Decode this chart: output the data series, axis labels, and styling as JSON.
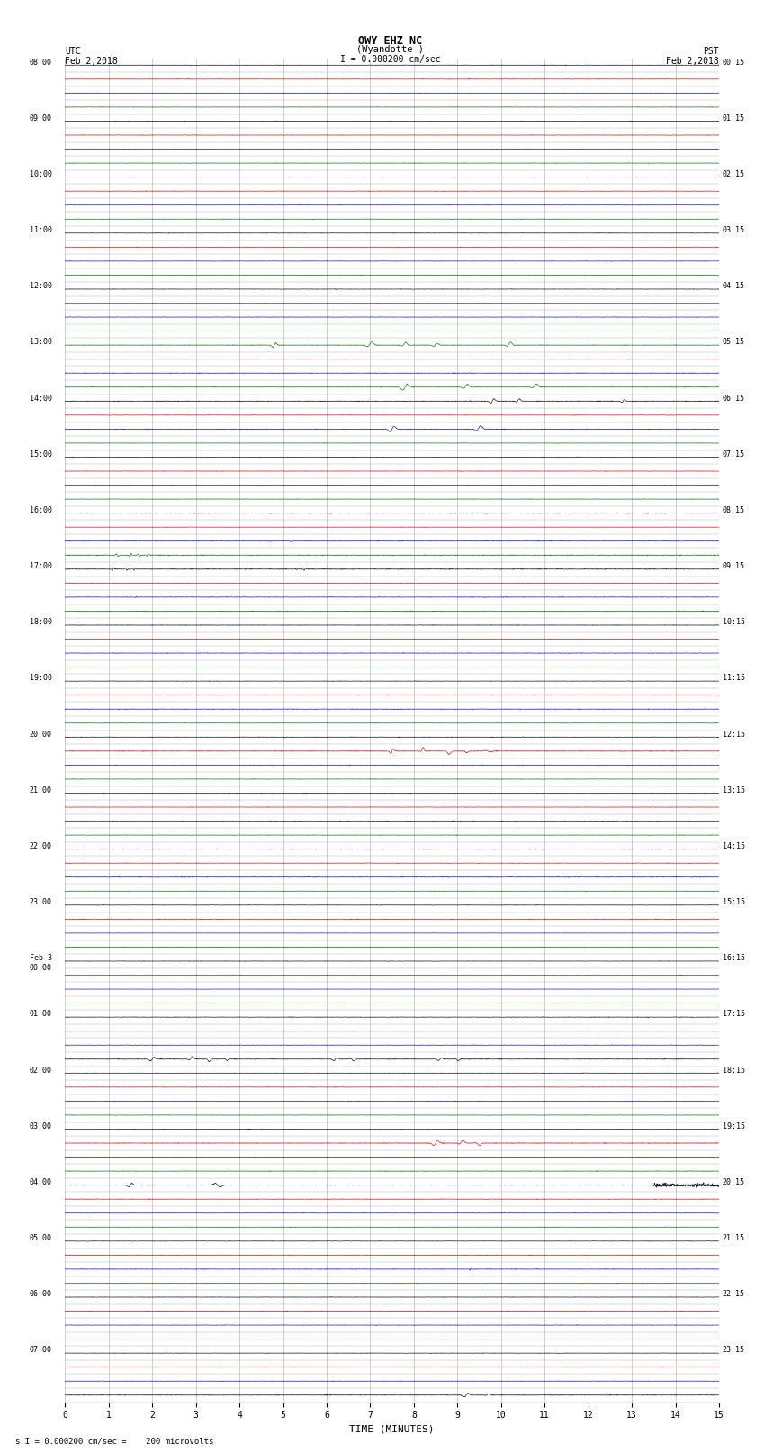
{
  "title_line1": "OWY EHZ NC",
  "title_line2": "(Wyandotte )",
  "scale_label": "I = 0.000200 cm/sec",
  "left_header": "UTC\nFeb 2,2018",
  "right_header": "PST\nFeb 2,2018",
  "bottom_note": "s I = 0.000200 cm/sec =    200 microvolts",
  "xlabel": "TIME (MINUTES)",
  "utc_times": [
    "08:00",
    "",
    "",
    "",
    "09:00",
    "",
    "",
    "",
    "10:00",
    "",
    "",
    "",
    "11:00",
    "",
    "",
    "",
    "12:00",
    "",
    "",
    "",
    "13:00",
    "",
    "",
    "",
    "14:00",
    "",
    "",
    "",
    "15:00",
    "",
    "",
    "",
    "16:00",
    "",
    "",
    "",
    "17:00",
    "",
    "",
    "",
    "18:00",
    "",
    "",
    "",
    "19:00",
    "",
    "",
    "",
    "20:00",
    "",
    "",
    "",
    "21:00",
    "",
    "",
    "",
    "22:00",
    "",
    "",
    "",
    "23:00",
    "",
    "",
    "",
    "Feb 3\n00:00",
    "",
    "",
    "",
    "01:00",
    "",
    "",
    "",
    "02:00",
    "",
    "",
    "",
    "03:00",
    "",
    "",
    "",
    "04:00",
    "",
    "",
    "",
    "05:00",
    "",
    "",
    "",
    "06:00",
    "",
    "",
    "",
    "07:00",
    "",
    "",
    ""
  ],
  "pst_times": [
    "00:15",
    "",
    "",
    "",
    "01:15",
    "",
    "",
    "",
    "02:15",
    "",
    "",
    "",
    "03:15",
    "",
    "",
    "",
    "04:15",
    "",
    "",
    "",
    "05:15",
    "",
    "",
    "",
    "06:15",
    "",
    "",
    "",
    "07:15",
    "",
    "",
    "",
    "08:15",
    "",
    "",
    "",
    "09:15",
    "",
    "",
    "",
    "10:15",
    "",
    "",
    "",
    "11:15",
    "",
    "",
    "",
    "12:15",
    "",
    "",
    "",
    "13:15",
    "",
    "",
    "",
    "14:15",
    "",
    "",
    "",
    "15:15",
    "",
    "",
    "",
    "16:15",
    "",
    "",
    "",
    "17:15",
    "",
    "",
    "",
    "18:15",
    "",
    "",
    "",
    "19:15",
    "",
    "",
    "",
    "20:15",
    "",
    "",
    "",
    "21:15",
    "",
    "",
    "",
    "22:15",
    "",
    "",
    "",
    "23:15",
    "",
    "",
    ""
  ],
  "num_rows": 96,
  "num_cols": 15,
  "bg_color": "#ffffff",
  "grid_color": "#aaaaaa",
  "trace_colors": {
    "black": "#000000",
    "red": "#cc0000",
    "blue": "#0000cc",
    "green": "#006600"
  },
  "color_cycle": [
    "black",
    "red",
    "blue",
    "green"
  ]
}
